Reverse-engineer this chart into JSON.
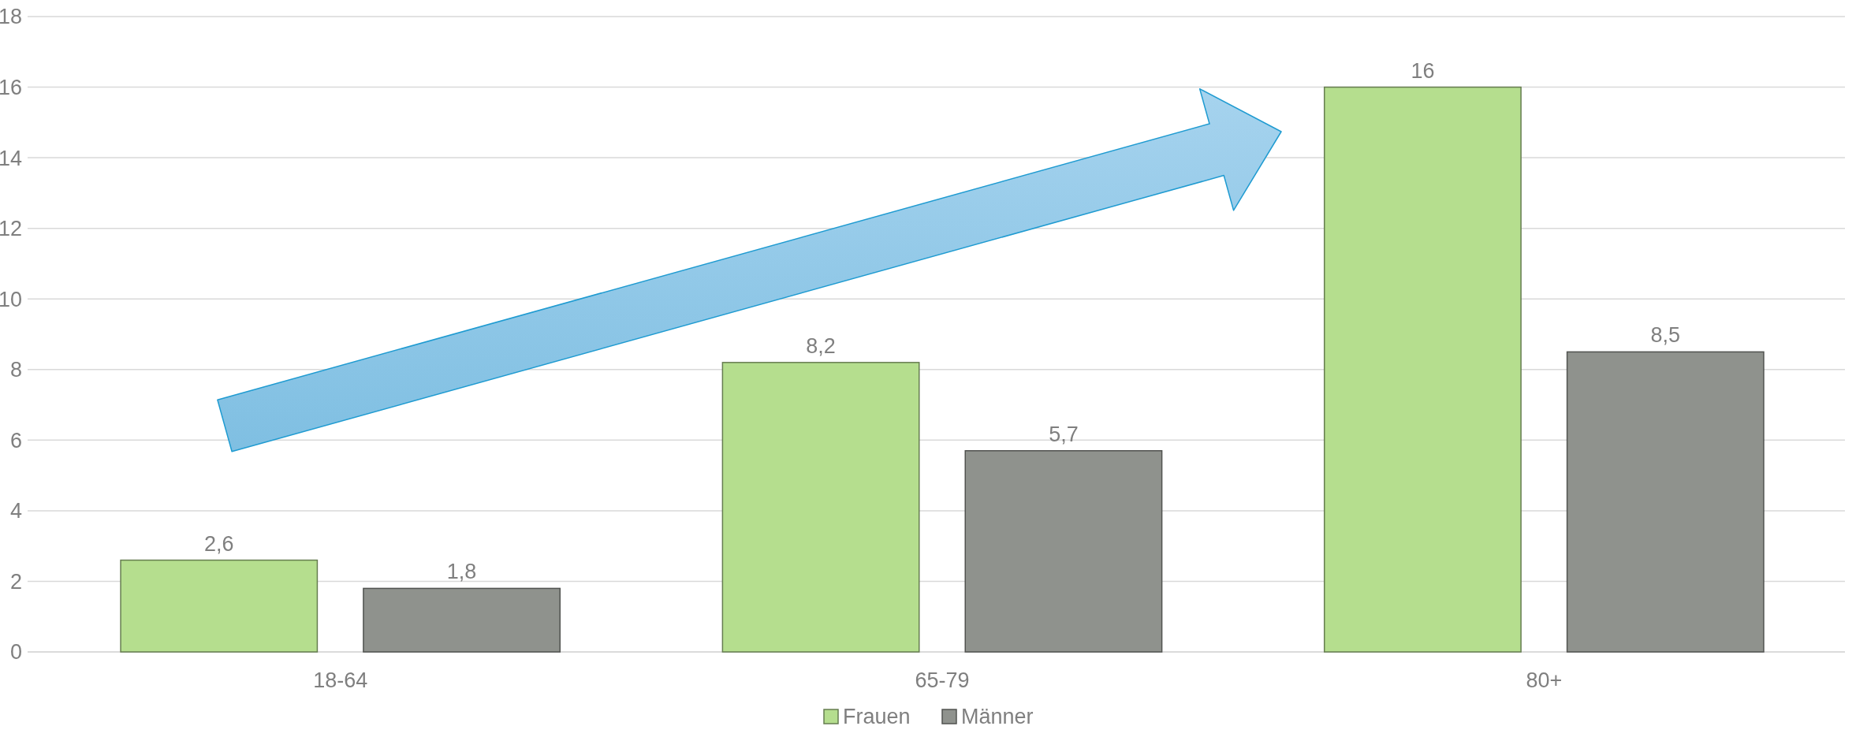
{
  "chart_data": {
    "type": "bar",
    "categories": [
      "18-64",
      "65-79",
      "80+"
    ],
    "series": [
      {
        "name": "Frauen",
        "color": "#b5de8e",
        "values": [
          2.6,
          8.2,
          16
        ],
        "value_labels": [
          "2,6",
          "8,2",
          "16"
        ]
      },
      {
        "name": "Männer",
        "color": "#8f928d",
        "values": [
          1.8,
          5.7,
          8.5
        ],
        "value_labels": [
          "1,8",
          "5,7",
          "8,5"
        ]
      }
    ],
    "ylim": [
      0,
      18
    ],
    "yticks": [
      0,
      2,
      4,
      6,
      8,
      10,
      12,
      14,
      16,
      18
    ],
    "grid": "y",
    "legend": "bottom"
  }
}
